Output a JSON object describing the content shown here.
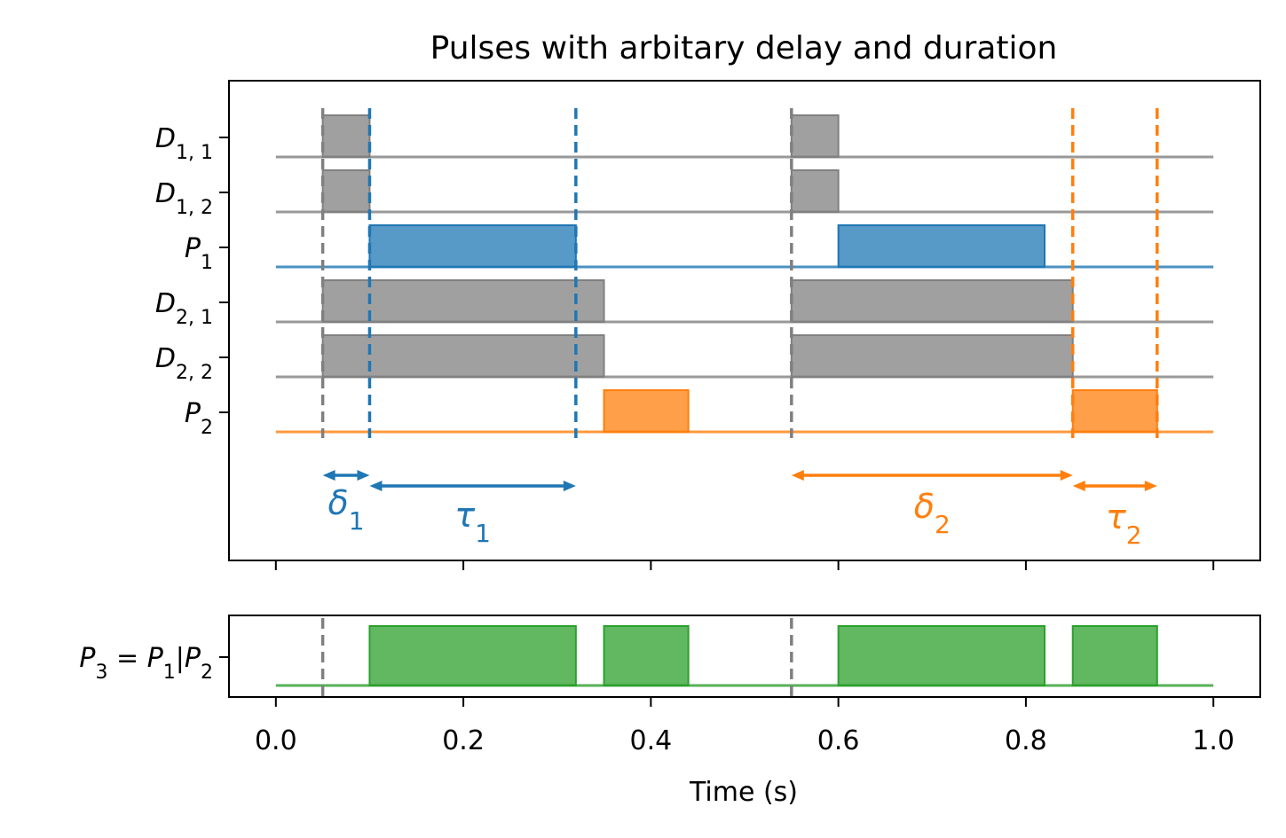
{
  "chart_data": {
    "type": "timing-diagram",
    "title": "Pulses with arbitary delay and duration",
    "xlabel": "Time (s)",
    "xlim": [
      -0.05,
      1.05
    ],
    "xticks": [
      "0.0",
      "0.2",
      "0.4",
      "0.6",
      "0.8",
      "1.0"
    ],
    "colors": {
      "gray": "#808080",
      "blue": "#1f77b4",
      "orange": "#ff7f0e",
      "green": "#2ca02c"
    },
    "top_panel": {
      "rows": [
        {
          "label_base": "D",
          "label_sub": "1, 1",
          "color": "gray",
          "pulses": [
            [
              0.05,
              0.1
            ],
            [
              0.55,
              0.6
            ]
          ]
        },
        {
          "label_base": "D",
          "label_sub": "1, 2",
          "color": "gray",
          "pulses": [
            [
              0.05,
              0.1
            ],
            [
              0.55,
              0.6
            ]
          ]
        },
        {
          "label_base": "P",
          "label_sub": "1",
          "color": "blue",
          "pulses": [
            [
              0.1,
              0.32
            ],
            [
              0.6,
              0.82
            ]
          ]
        },
        {
          "label_base": "D",
          "label_sub": "2, 1",
          "color": "gray",
          "pulses": [
            [
              0.05,
              0.35
            ],
            [
              0.55,
              0.85
            ]
          ]
        },
        {
          "label_base": "D",
          "label_sub": "2, 2",
          "color": "gray",
          "pulses": [
            [
              0.05,
              0.35
            ],
            [
              0.55,
              0.85
            ]
          ]
        },
        {
          "label_base": "P",
          "label_sub": "2",
          "color": "orange",
          "pulses": [
            [
              0.35,
              0.44
            ],
            [
              0.85,
              0.94
            ]
          ]
        }
      ],
      "vlines": [
        {
          "x": 0.05,
          "color": "gray"
        },
        {
          "x": 0.1,
          "color": "blue"
        },
        {
          "x": 0.32,
          "color": "blue"
        },
        {
          "x": 0.55,
          "color": "gray"
        },
        {
          "x": 0.85,
          "color": "orange"
        },
        {
          "x": 0.94,
          "color": "orange"
        }
      ],
      "annotations": [
        {
          "symbol": "δ",
          "sub": "1",
          "from": 0.05,
          "to": 0.1,
          "color": "blue"
        },
        {
          "symbol": "τ",
          "sub": "1",
          "from": 0.1,
          "to": 0.32,
          "color": "blue"
        },
        {
          "symbol": "δ",
          "sub": "2",
          "from": 0.55,
          "to": 0.85,
          "color": "orange"
        },
        {
          "symbol": "τ",
          "sub": "2",
          "from": 0.85,
          "to": 0.94,
          "color": "orange"
        }
      ]
    },
    "bottom_panel": {
      "label_parts": [
        "P",
        "3",
        " = ",
        "P",
        "1",
        "|",
        "P",
        "2"
      ],
      "color": "green",
      "pulses": [
        [
          0.1,
          0.32
        ],
        [
          0.35,
          0.44
        ],
        [
          0.6,
          0.82
        ],
        [
          0.85,
          0.94
        ]
      ],
      "vlines": [
        {
          "x": 0.05,
          "color": "gray"
        },
        {
          "x": 0.55,
          "color": "gray"
        }
      ]
    }
  }
}
